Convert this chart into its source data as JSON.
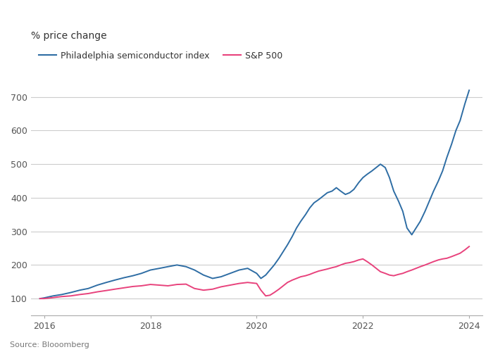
{
  "title": "% price change",
  "source": "Source: Blooomberg",
  "legend": [
    "Philadelphia semiconductor index",
    "S&P 500"
  ],
  "colors": [
    "#2e6da4",
    "#e8427c"
  ],
  "xlim_years": [
    2015.75,
    2024.25
  ],
  "ylim": [
    50,
    800
  ],
  "yticks": [
    100,
    200,
    300,
    400,
    500,
    600,
    700
  ],
  "xticks_labels": [
    "2016",
    "2018",
    "2020",
    "2022",
    "2024"
  ],
  "xticks_values": [
    2016,
    2018,
    2020,
    2022,
    2024
  ],
  "background_color": "#ffffff",
  "grid_color": "#cccccc",
  "philly_semi": {
    "dates": [
      2015.92,
      2016.0,
      2016.17,
      2016.33,
      2016.5,
      2016.67,
      2016.83,
      2017.0,
      2017.17,
      2017.33,
      2017.5,
      2017.67,
      2017.83,
      2018.0,
      2018.17,
      2018.33,
      2018.5,
      2018.67,
      2018.83,
      2019.0,
      2019.17,
      2019.33,
      2019.5,
      2019.67,
      2019.83,
      2020.0,
      2020.08,
      2020.17,
      2020.25,
      2020.33,
      2020.42,
      2020.5,
      2020.58,
      2020.67,
      2020.75,
      2020.83,
      2020.92,
      2021.0,
      2021.08,
      2021.17,
      2021.25,
      2021.33,
      2021.42,
      2021.5,
      2021.58,
      2021.67,
      2021.75,
      2021.83,
      2021.92,
      2022.0,
      2022.08,
      2022.17,
      2022.25,
      2022.33,
      2022.42,
      2022.5,
      2022.58,
      2022.67,
      2022.75,
      2022.83,
      2022.92,
      2023.0,
      2023.08,
      2023.17,
      2023.25,
      2023.33,
      2023.42,
      2023.5,
      2023.58,
      2023.67,
      2023.75,
      2023.83,
      2023.92,
      2024.0
    ],
    "values": [
      100,
      102,
      108,
      112,
      118,
      125,
      130,
      140,
      148,
      155,
      162,
      168,
      175,
      185,
      190,
      195,
      200,
      195,
      185,
      170,
      160,
      165,
      175,
      185,
      190,
      175,
      160,
      170,
      185,
      200,
      220,
      240,
      260,
      285,
      310,
      330,
      350,
      370,
      385,
      395,
      405,
      415,
      420,
      430,
      420,
      410,
      415,
      425,
      445,
      460,
      470,
      480,
      490,
      500,
      490,
      460,
      420,
      390,
      360,
      310,
      290,
      310,
      330,
      360,
      390,
      420,
      450,
      480,
      520,
      560,
      600,
      630,
      680,
      720
    ]
  },
  "sp500": {
    "dates": [
      2015.92,
      2016.0,
      2016.17,
      2016.33,
      2016.5,
      2016.67,
      2016.83,
      2017.0,
      2017.17,
      2017.33,
      2017.5,
      2017.67,
      2017.83,
      2018.0,
      2018.17,
      2018.33,
      2018.5,
      2018.67,
      2018.83,
      2019.0,
      2019.17,
      2019.33,
      2019.5,
      2019.67,
      2019.83,
      2020.0,
      2020.08,
      2020.17,
      2020.25,
      2020.33,
      2020.42,
      2020.5,
      2020.58,
      2020.67,
      2020.75,
      2020.83,
      2020.92,
      2021.0,
      2021.08,
      2021.17,
      2021.25,
      2021.33,
      2021.42,
      2021.5,
      2021.58,
      2021.67,
      2021.75,
      2021.83,
      2021.92,
      2022.0,
      2022.08,
      2022.17,
      2022.25,
      2022.33,
      2022.42,
      2022.5,
      2022.58,
      2022.67,
      2022.75,
      2022.83,
      2022.92,
      2023.0,
      2023.08,
      2023.17,
      2023.25,
      2023.33,
      2023.42,
      2023.5,
      2023.58,
      2023.67,
      2023.75,
      2023.83,
      2023.92,
      2024.0
    ],
    "values": [
      100,
      100,
      103,
      106,
      108,
      112,
      115,
      120,
      124,
      128,
      132,
      136,
      138,
      142,
      140,
      138,
      142,
      143,
      130,
      125,
      128,
      135,
      140,
      145,
      148,
      145,
      125,
      108,
      110,
      118,
      128,
      138,
      148,
      155,
      160,
      165,
      168,
      172,
      177,
      182,
      185,
      188,
      192,
      195,
      200,
      205,
      207,
      210,
      215,
      218,
      210,
      200,
      190,
      180,
      175,
      170,
      168,
      172,
      175,
      180,
      185,
      190,
      195,
      200,
      205,
      210,
      215,
      218,
      220,
      225,
      230,
      235,
      245,
      255
    ]
  }
}
